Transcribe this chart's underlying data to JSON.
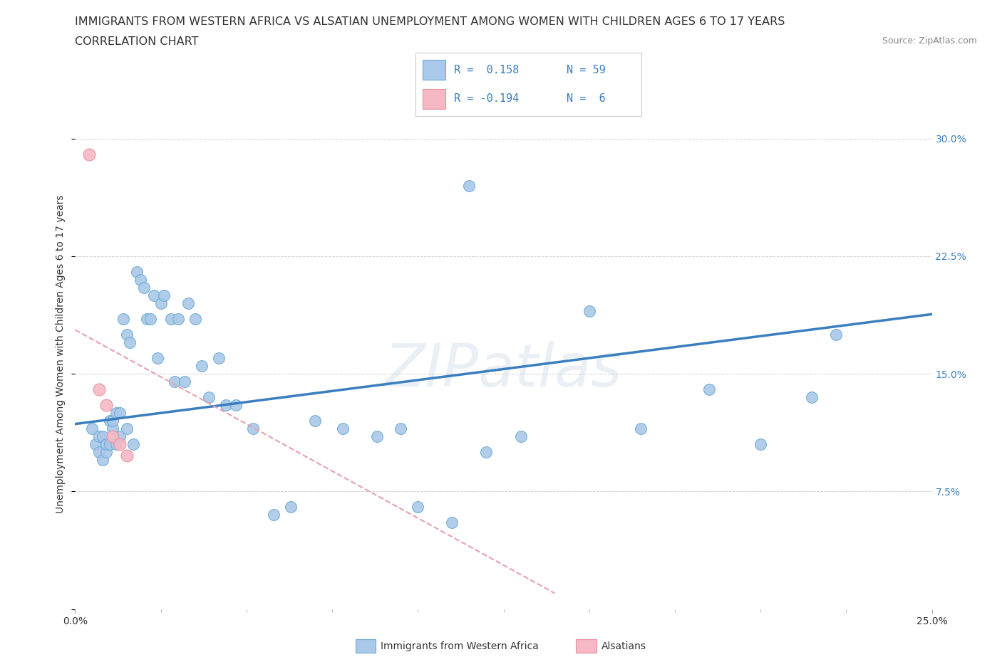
{
  "title_line1": "IMMIGRANTS FROM WESTERN AFRICA VS ALSATIAN UNEMPLOYMENT AMONG WOMEN WITH CHILDREN AGES 6 TO 17 YEARS",
  "title_line2": "CORRELATION CHART",
  "source_text": "Source: ZipAtlas.com",
  "ylabel": "Unemployment Among Women with Children Ages 6 to 17 years",
  "xlim": [
    0.0,
    0.25
  ],
  "ylim": [
    0.0,
    0.325
  ],
  "yticks": [
    0.0,
    0.075,
    0.15,
    0.225,
    0.3
  ],
  "ytick_labels": [
    "",
    "7.5%",
    "15.0%",
    "22.5%",
    "30.0%"
  ],
  "xticks": [
    0.0,
    0.25
  ],
  "xtick_labels": [
    "0.0%",
    "25.0%"
  ],
  "grid_color": "#cccccc",
  "background_color": "#ffffff",
  "watermark": "ZIPatlas",
  "blue_scatter_x": [
    0.005,
    0.006,
    0.007,
    0.007,
    0.008,
    0.008,
    0.009,
    0.009,
    0.01,
    0.01,
    0.011,
    0.011,
    0.012,
    0.012,
    0.013,
    0.013,
    0.014,
    0.015,
    0.015,
    0.016,
    0.017,
    0.018,
    0.019,
    0.02,
    0.021,
    0.022,
    0.023,
    0.024,
    0.025,
    0.026,
    0.028,
    0.029,
    0.03,
    0.032,
    0.033,
    0.035,
    0.037,
    0.039,
    0.042,
    0.044,
    0.047,
    0.052,
    0.058,
    0.063,
    0.07,
    0.078,
    0.088,
    0.095,
    0.1,
    0.11,
    0.115,
    0.12,
    0.13,
    0.15,
    0.165,
    0.185,
    0.2,
    0.215,
    0.222
  ],
  "blue_scatter_y": [
    0.115,
    0.105,
    0.1,
    0.11,
    0.095,
    0.11,
    0.1,
    0.105,
    0.105,
    0.12,
    0.115,
    0.12,
    0.105,
    0.125,
    0.11,
    0.125,
    0.185,
    0.175,
    0.115,
    0.17,
    0.105,
    0.215,
    0.21,
    0.205,
    0.185,
    0.185,
    0.2,
    0.16,
    0.195,
    0.2,
    0.185,
    0.145,
    0.185,
    0.145,
    0.195,
    0.185,
    0.155,
    0.135,
    0.16,
    0.13,
    0.13,
    0.115,
    0.06,
    0.065,
    0.12,
    0.115,
    0.11,
    0.115,
    0.065,
    0.055,
    0.27,
    0.1,
    0.11,
    0.19,
    0.115,
    0.14,
    0.105,
    0.135,
    0.175
  ],
  "pink_scatter_x": [
    0.004,
    0.007,
    0.009,
    0.011,
    0.013,
    0.015
  ],
  "pink_scatter_y": [
    0.29,
    0.14,
    0.13,
    0.11,
    0.105,
    0.098
  ],
  "blue_line_x": [
    0.0,
    0.25
  ],
  "blue_line_y": [
    0.118,
    0.188
  ],
  "blue_line_color": "#3a7ebf",
  "pink_line_x": [
    0.0,
    0.14
  ],
  "pink_line_y": [
    0.178,
    0.01
  ],
  "pink_line_color": "#e8a0b0",
  "pink_line_style": "dashed",
  "scatter_blue_color": "#aac8e8",
  "scatter_blue_edge": "#6aaad4",
  "scatter_pink_color": "#f5b8c4",
  "scatter_pink_edge": "#e88fa0",
  "legend_R1": "R =  0.158",
  "legend_N1": "N = 59",
  "legend_R2": "R = -0.194",
  "legend_N2": "N =  6",
  "legend_color": "#3a7ebf",
  "title_fontsize": 11.5,
  "subtitle_fontsize": 11.5,
  "axis_label_fontsize": 10,
  "tick_fontsize": 10,
  "legend_fontsize": 11
}
